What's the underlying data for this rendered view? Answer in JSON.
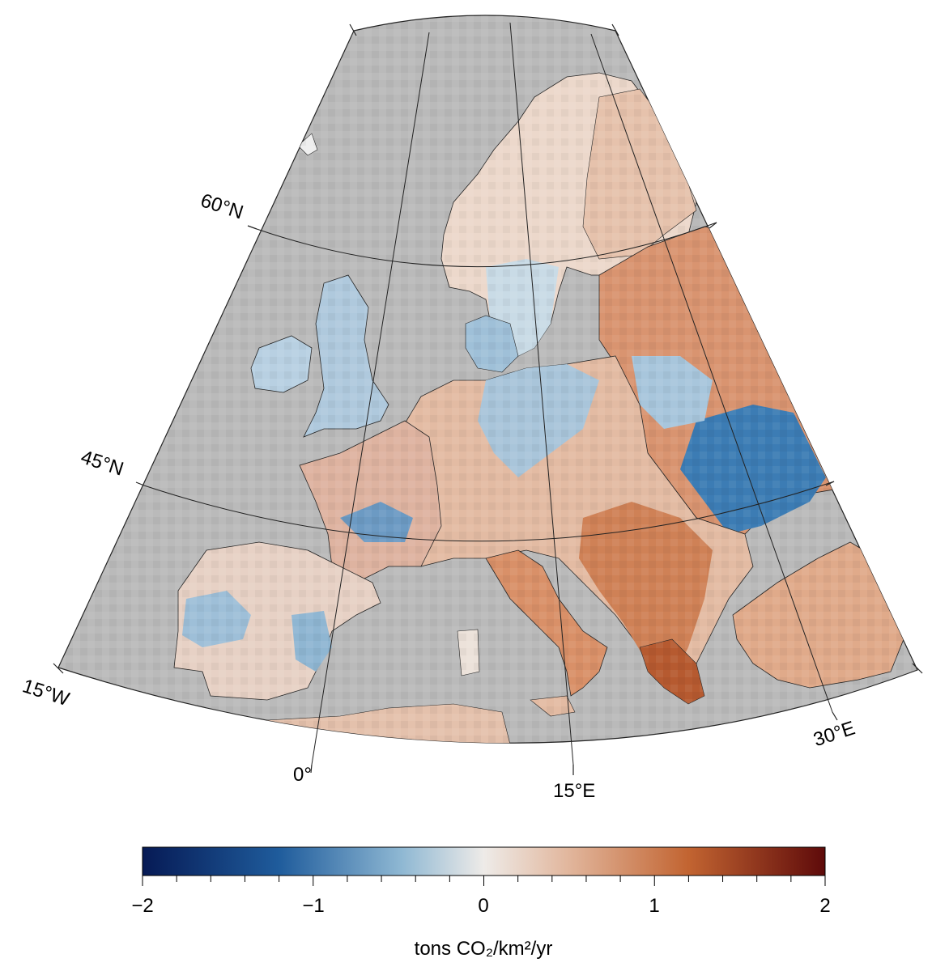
{
  "map": {
    "lat_labels": [
      {
        "text": "60°N"
      },
      {
        "text": "45°N"
      },
      {
        "text": "15°W"
      }
    ],
    "lon_labels": [
      {
        "text": "0°"
      },
      {
        "text": "15°E"
      },
      {
        "text": "30°E"
      }
    ],
    "background_color": "#bababa",
    "graticule_color": "#222222"
  },
  "colorbar": {
    "min": -2,
    "max": 2,
    "tick_labels": [
      "−2",
      "−1",
      "0",
      "1",
      "2"
    ],
    "unit_label": "tons CO₂/km²/yr",
    "colors": [
      "#062060",
      "#2c6aa8",
      "#e9e6e3",
      "#c46a3a",
      "#6a0f0c"
    ]
  }
}
